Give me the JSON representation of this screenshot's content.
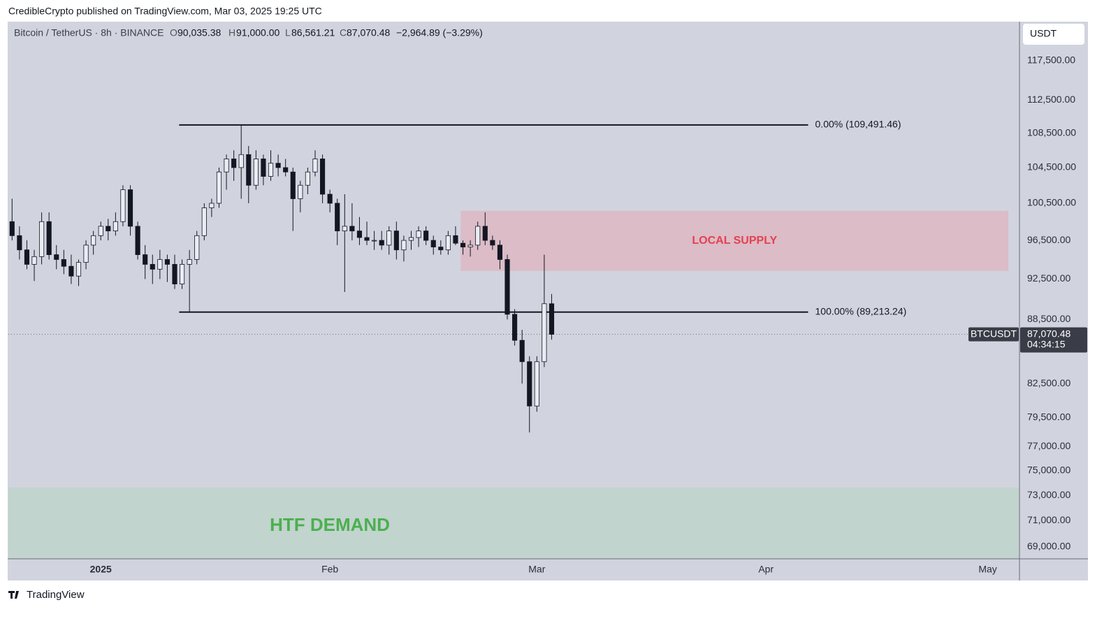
{
  "header": {
    "published": "CredibleCrypto published on TradingView.com, Mar 03, 2025 19:25 UTC",
    "symbol": "Bitcoin / TetherUS · 8h · BINANCE",
    "o_key": "O",
    "o": "90,035.38",
    "h_key": "H",
    "h": "91,000.00",
    "l_key": "L",
    "l": "86,561.21",
    "c_key": "C",
    "c": "87,070.48",
    "change": "−2,964.89 (−3.29%)",
    "currency": "USDT"
  },
  "footer": {
    "brand": "TradingView"
  },
  "chart_data": {
    "type": "candlestick",
    "log_scale": true,
    "up_color": "#e9ecf2",
    "down_color": "#131722",
    "x": [
      -12,
      -11,
      -10,
      -9,
      -8,
      -7,
      -6,
      -5,
      -4,
      -3,
      -2,
      -1,
      0,
      1,
      2,
      3,
      4,
      5,
      6,
      7,
      8,
      9,
      10,
      11,
      12,
      13,
      14,
      15,
      16,
      17,
      18,
      19,
      20,
      21,
      22,
      23,
      24,
      25,
      26,
      27,
      28,
      29,
      30,
      31,
      32,
      33,
      34,
      35,
      36,
      37,
      38,
      39,
      40,
      41,
      42,
      43,
      44,
      45,
      46,
      47,
      48,
      49,
      50,
      51,
      52,
      53,
      54,
      55,
      56,
      57,
      58,
      59,
      60,
      61
    ],
    "open": [
      98500,
      97000,
      95500,
      94000,
      94800,
      98500,
      95000,
      94500,
      93800,
      92800,
      94200,
      96000,
      97000,
      98000,
      97500,
      98500,
      102000,
      98000,
      95000,
      94000,
      93500,
      94500,
      94000,
      92000,
      94000,
      94500,
      97000,
      100000,
      100500,
      104000,
      105500,
      104500,
      106000,
      102500,
      105500,
      103500,
      105000,
      104500,
      104000,
      101000,
      102500,
      104000,
      105500,
      101500,
      100500,
      97500,
      98000,
      97500,
      96800,
      96500,
      96500,
      96000,
      97500,
      95500,
      96500,
      96800,
      97500,
      96500,
      95800,
      95500,
      97000,
      96200,
      95800,
      96000,
      98000,
      96500,
      96000,
      94500,
      89000,
      86500,
      84500,
      80500,
      84500,
      90035.38
    ],
    "high": [
      101000,
      98000,
      96500,
      95500,
      99500,
      99500,
      96000,
      95500,
      95000,
      94500,
      96500,
      97500,
      98500,
      98800,
      99500,
      102500,
      102500,
      98500,
      96000,
      95000,
      95500,
      95000,
      95000,
      94500,
      95500,
      97500,
      100500,
      101000,
      104500,
      106000,
      106500,
      109491,
      107000,
      106500,
      106000,
      106500,
      106000,
      105500,
      104500,
      103000,
      104500,
      106500,
      106000,
      102000,
      101000,
      101500,
      100500,
      99000,
      98500,
      97500,
      97500,
      98000,
      98500,
      97000,
      97500,
      98000,
      98000,
      97000,
      96500,
      97500,
      98000,
      96500,
      96500,
      98500,
      99500,
      97000,
      96500,
      95000,
      89500,
      87500,
      85000,
      85000,
      95000,
      91000
    ],
    "low": [
      96500,
      94500,
      93500,
      92300,
      94000,
      94500,
      93500,
      93000,
      92000,
      91800,
      93500,
      95000,
      96500,
      96500,
      97000,
      98000,
      97000,
      94500,
      92500,
      92000,
      92500,
      92200,
      91500,
      91500,
      89213,
      94000,
      96500,
      99000,
      100000,
      102000,
      103000,
      101000,
      100500,
      102000,
      102500,
      103000,
      103500,
      103500,
      97500,
      99500,
      101500,
      103500,
      100500,
      99500,
      96000,
      91200,
      96500,
      96000,
      96000,
      95500,
      95500,
      95000,
      94500,
      94300,
      95500,
      95800,
      96000,
      95000,
      95000,
      95000,
      96000,
      95000,
      94800,
      95500,
      96000,
      95500,
      93500,
      88500,
      86000,
      82500,
      78200,
      80000,
      84000,
      86561.21
    ],
    "close": [
      97000,
      95500,
      94000,
      94800,
      98500,
      95000,
      94500,
      93800,
      92800,
      94200,
      96000,
      97000,
      98000,
      97500,
      98500,
      102000,
      98000,
      95000,
      94000,
      93500,
      94500,
      94000,
      92000,
      94000,
      94500,
      97000,
      100000,
      100500,
      104000,
      105500,
      104500,
      106000,
      102500,
      105500,
      103500,
      105000,
      104500,
      104000,
      101000,
      102500,
      104000,
      105500,
      101500,
      100500,
      97500,
      98000,
      97500,
      96800,
      96500,
      96500,
      96000,
      97500,
      95500,
      96500,
      96800,
      97500,
      96500,
      95800,
      95500,
      97000,
      96200,
      95800,
      96000,
      98000,
      96500,
      96000,
      94500,
      89000,
      86500,
      84500,
      80500,
      84500,
      90035.38,
      87070.48
    ],
    "xlim": [
      -12.5,
      124.2
    ],
    "xticks": [
      {
        "value": 0,
        "label": "2025"
      },
      {
        "value": 31,
        "label": "Feb"
      },
      {
        "value": 59,
        "label": "Mar"
      },
      {
        "value": 90,
        "label": "Apr"
      },
      {
        "value": 120,
        "label": "May"
      }
    ],
    "ylim": [
      68100,
      122600
    ],
    "yticks": [
      {
        "value": 117500,
        "label": "117,500.00"
      },
      {
        "value": 112500,
        "label": "112,500.00"
      },
      {
        "value": 108500,
        "label": "108,500.00"
      },
      {
        "value": 104500,
        "label": "104,500.00"
      },
      {
        "value": 100500,
        "label": "100,500.00"
      },
      {
        "value": 96500,
        "label": "96,500.00"
      },
      {
        "value": 92500,
        "label": "92,500.00"
      },
      {
        "value": 88500,
        "label": "88,500.00"
      },
      {
        "value": 82500,
        "label": "82,500.00"
      },
      {
        "value": 79500,
        "label": "79,500.00"
      },
      {
        "value": 77000,
        "label": "77,000.00"
      },
      {
        "value": 75000,
        "label": "75,000.00"
      },
      {
        "value": 73000,
        "label": "73,000.00"
      },
      {
        "value": 71000,
        "label": "71,000.00"
      },
      {
        "value": 69000,
        "label": "69,000.00"
      }
    ],
    "fib_levels": [
      {
        "value": 109491.46,
        "label": "0.00% (109,491.46)"
      },
      {
        "value": 89213.24,
        "label": "100.00% (89,213.24)"
      }
    ],
    "fib_x_range": [
      10.6,
      95.7
    ],
    "zones": [
      {
        "label": "LOCAL SUPPLY",
        "color": "#dbbcc7",
        "text_color": "#e5404f",
        "y_range": [
          93320,
          99670
        ],
        "x_range": [
          48.7,
          122.8
        ]
      },
      {
        "label": "HTF DEMAND",
        "color": "#c1d4cd",
        "text_color": "#4caf50",
        "y_range": [
          68100,
          73630
        ],
        "x_range": [
          -12.5,
          124.2
        ]
      }
    ],
    "last_price": 87070.48,
    "last_price_label": "87,070.48",
    "symbol_tag": "BTCUSDT",
    "countdown": "04:34:15"
  }
}
